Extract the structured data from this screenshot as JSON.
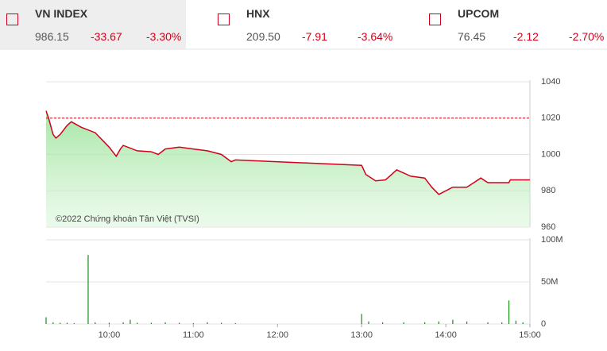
{
  "indices": [
    {
      "name": "VN INDEX",
      "value": "986.15",
      "change": "-33.67",
      "percent": "-3.30%"
    },
    {
      "name": "HNX",
      "value": "209.50",
      "change": "-7.91",
      "percent": "-3.64%"
    },
    {
      "name": "UPCOM",
      "value": "76.45",
      "change": "-2.12",
      "percent": "-2.70%"
    }
  ],
  "chart_data": [
    {
      "type": "line",
      "area": true,
      "watermark": "©2022 Chứng khoán Tân Việt (TVSI)",
      "x": [
        "09:15",
        "09:17",
        "09:20",
        "09:22",
        "09:25",
        "09:30",
        "09:33",
        "09:40",
        "09:50",
        "09:55",
        "10:00",
        "10:05",
        "10:08",
        "10:10",
        "10:20",
        "10:30",
        "10:35",
        "10:40",
        "10:50",
        "11:00",
        "11:10",
        "11:20",
        "11:27",
        "11:30",
        "13:00",
        "13:03",
        "13:10",
        "13:17",
        "13:25",
        "13:35",
        "13:45",
        "13:50",
        "13:55",
        "14:05",
        "14:15",
        "14:20",
        "14:25",
        "14:30",
        "14:45",
        "14:46",
        "15:00"
      ],
      "series": [
        {
          "color": "#d0021b",
          "values": [
            1024,
            1019.5,
            1011,
            1009,
            1011,
            1016,
            1018,
            1015,
            1012,
            1008,
            1004,
            999,
            1003,
            1005,
            1002,
            1001.5,
            1000,
            1003,
            1004,
            1003,
            1002,
            1000,
            996,
            997,
            994,
            989,
            985.5,
            986,
            991.5,
            988,
            987,
            982,
            978,
            982,
            982,
            984.5,
            987,
            984.5,
            984.5,
            986,
            986
          ]
        }
      ],
      "reference": 1020,
      "xlim": [
        "09:15",
        "15:00"
      ],
      "ylim": [
        960,
        1040
      ],
      "yticks": [
        960,
        980,
        1000,
        1020,
        1040
      ],
      "grid": true
    },
    {
      "type": "bar",
      "color": "#1a8c1a",
      "x": [
        "09:15",
        "09:20",
        "09:25",
        "09:30",
        "09:35",
        "09:45",
        "09:50",
        "10:00",
        "10:10",
        "10:15",
        "10:20",
        "10:30",
        "10:40",
        "10:50",
        "11:00",
        "11:10",
        "11:20",
        "11:30",
        "13:00",
        "13:05",
        "13:15",
        "13:30",
        "13:45",
        "13:55",
        "14:05",
        "14:15",
        "14:30",
        "14:40",
        "14:45",
        "14:50",
        "14:55"
      ],
      "values": [
        8,
        2,
        1.5,
        1.5,
        1,
        82,
        2,
        1.5,
        2,
        5,
        1.5,
        1.5,
        2,
        1.5,
        1,
        2,
        1.5,
        1,
        12,
        3,
        2,
        2,
        2,
        3,
        5,
        3,
        2,
        2,
        28,
        4,
        2
      ],
      "xlim": [
        "09:15",
        "15:00"
      ],
      "xticks": [
        "10:00",
        "11:00",
        "12:00",
        "13:00",
        "14:00",
        "15:00"
      ],
      "ylim": [
        0,
        100
      ],
      "yticks": [
        0,
        {
          "value": 50,
          "label": "50M"
        },
        {
          "value": 100,
          "label": "100M"
        }
      ],
      "grid": true
    }
  ]
}
